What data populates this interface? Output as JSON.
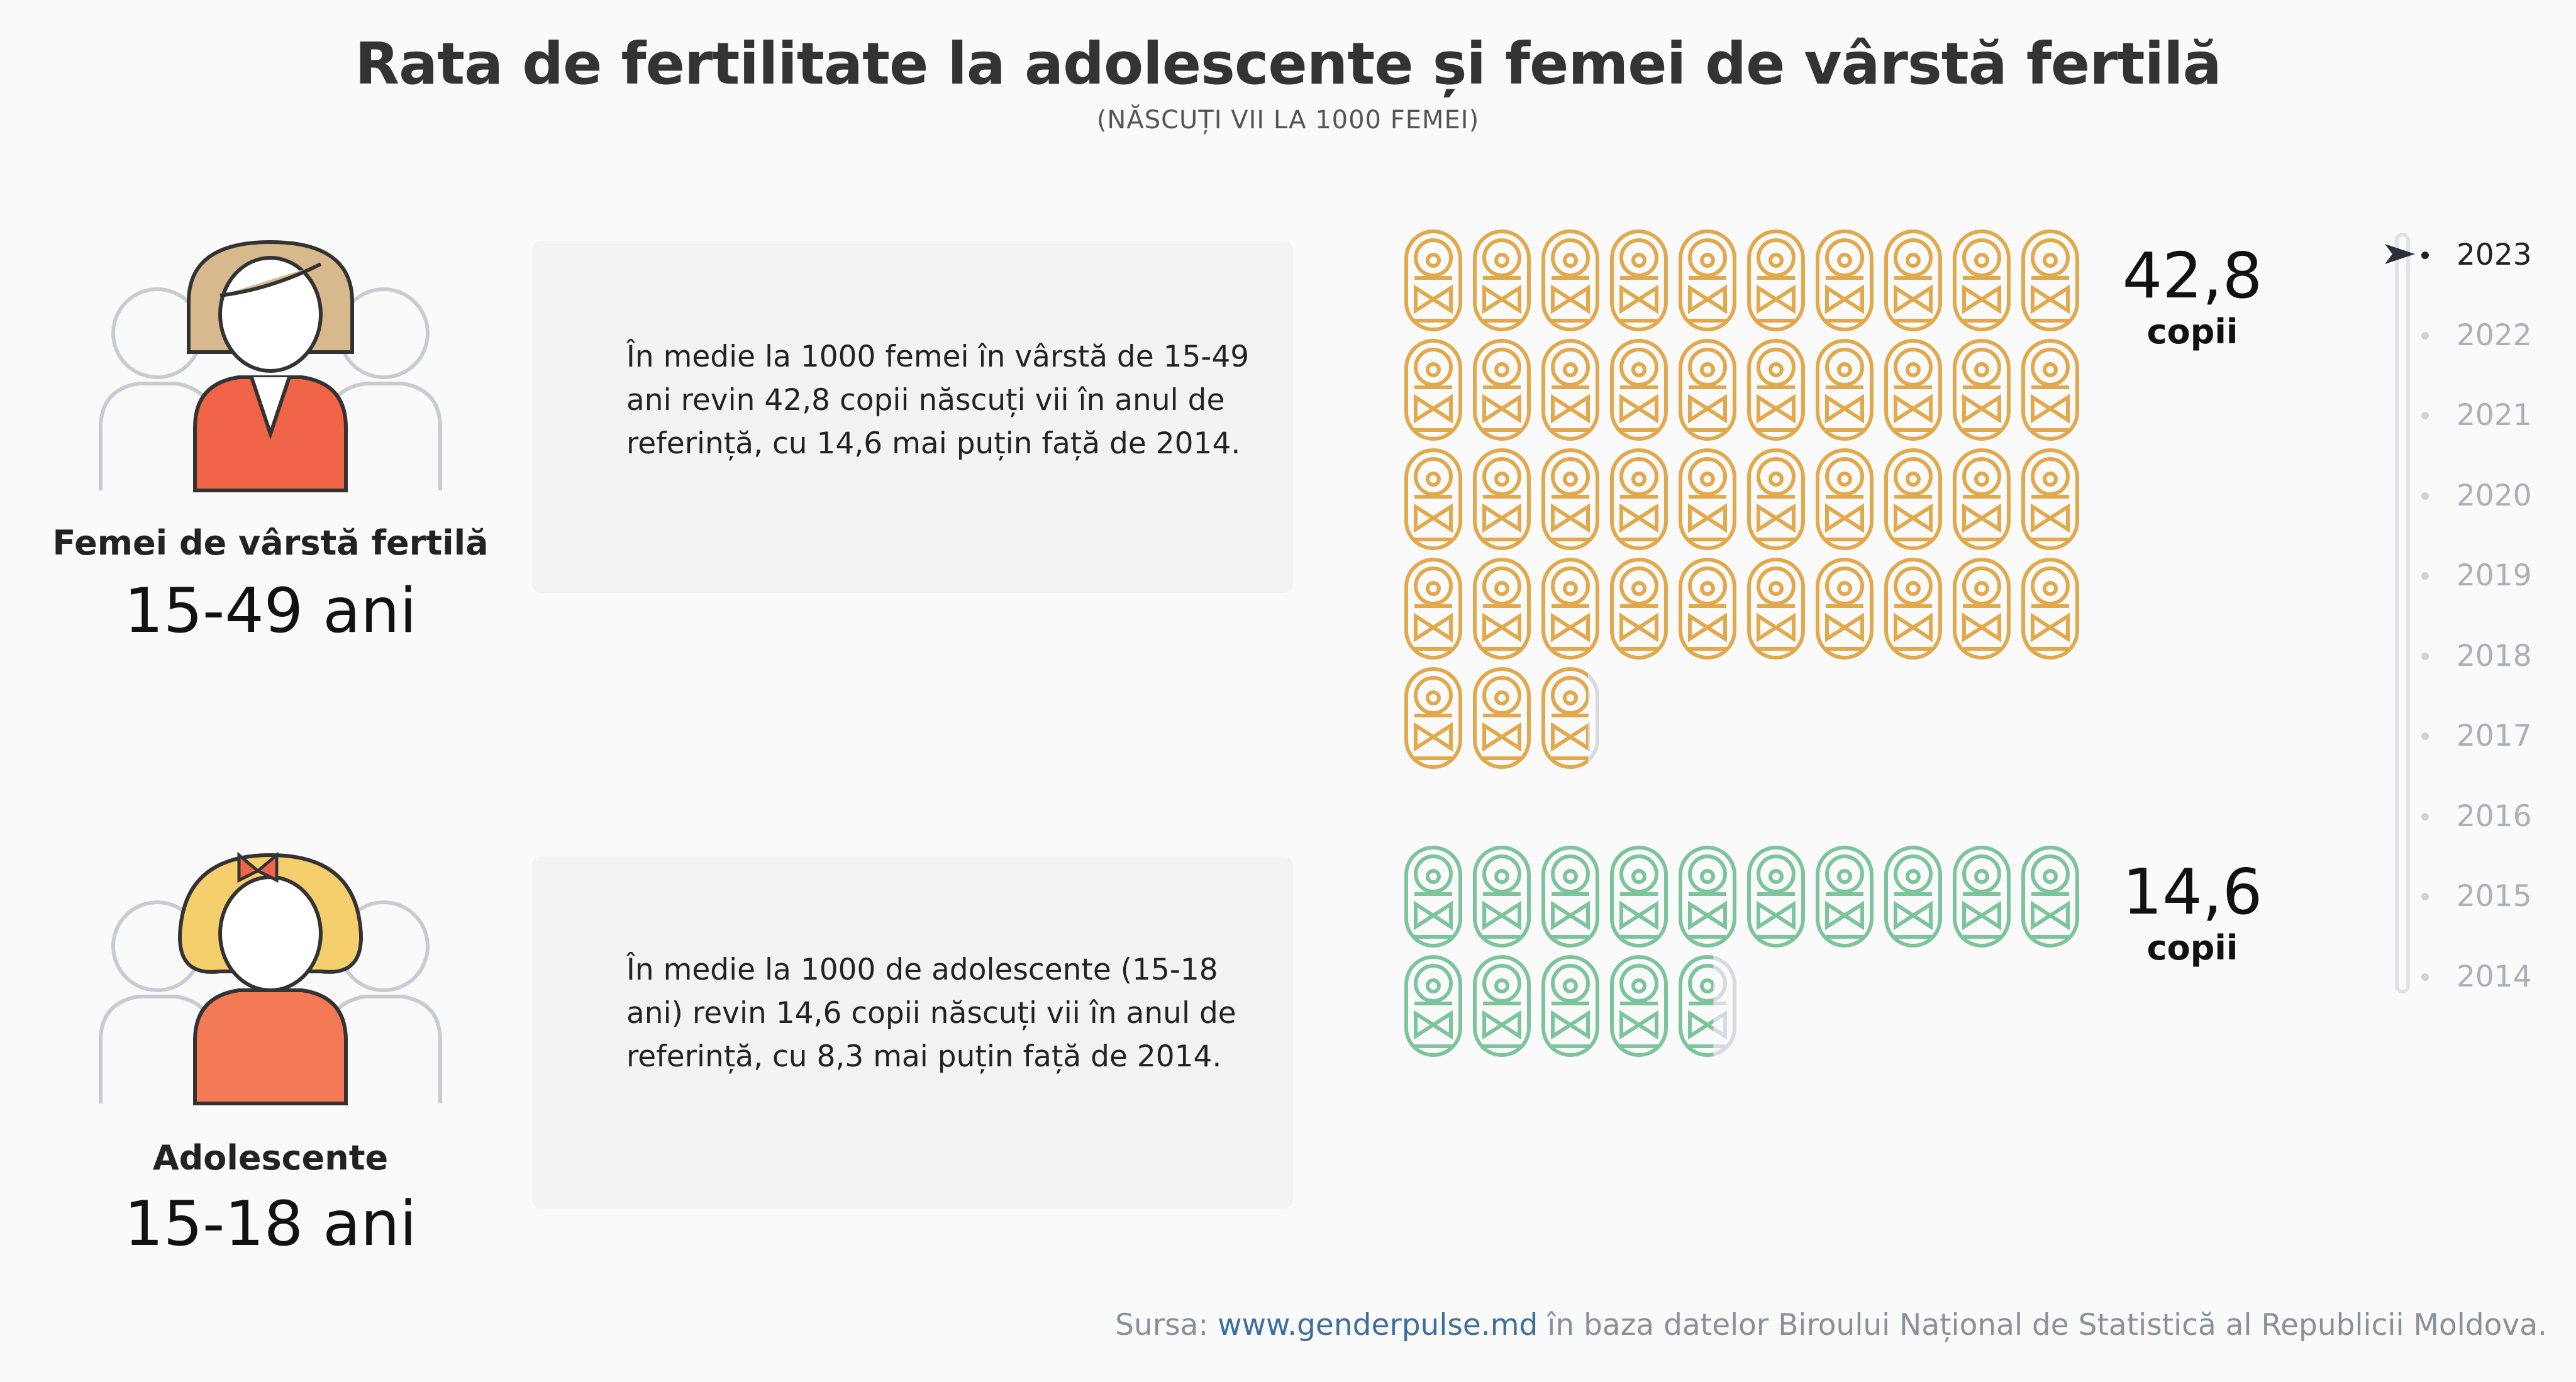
{
  "title": "Rata de fertilitate la adolescente și femei de vârstă fertilă",
  "subtitle": "(NĂSCUȚI VII LA 1000 FEMEI)",
  "groups": [
    {
      "label": "Femei de vârstă fertilă",
      "range": "15-49 ani",
      "description": "În medie la 1000 femei în vârstă de 15-49 ani revin 42,8 copii născuți vii în anul de referință, cu 14,6 mai puțin față de 2014.",
      "value_label": "42,8",
      "unit": "copii",
      "color": "#e2a94c"
    },
    {
      "label": "Adolescente",
      "range": "15-18 ani",
      "description": "În medie la 1000 de adolescente (15-18 ani) revin 14,6 copii născuți vii în anul de referință, cu 8,3 mai puțin față de 2014.",
      "value_label": "14,6",
      "unit": "copii",
      "color": "#7cc59c"
    }
  ],
  "timeline": {
    "years": [
      "2023",
      "2022",
      "2021",
      "2020",
      "2019",
      "2018",
      "2017",
      "2016",
      "2015",
      "2014"
    ],
    "selected": "2023"
  },
  "source": {
    "prefix": "Sursa: ",
    "link": "www.genderpulse.md",
    "suffix": " în baza datelor Biroului Național de Statistică al Republicii Moldova."
  },
  "chart_data": {
    "type": "pictogram",
    "unit_per_icon": 1,
    "icons_per_row": 10,
    "categories": [
      "Femei de vârstă fertilă 15-49 ani",
      "Adolescente 15-18 ani"
    ],
    "values": [
      42.8,
      14.6
    ],
    "year": "2023",
    "colors": [
      "#e2a94c",
      "#7cc59c"
    ]
  }
}
